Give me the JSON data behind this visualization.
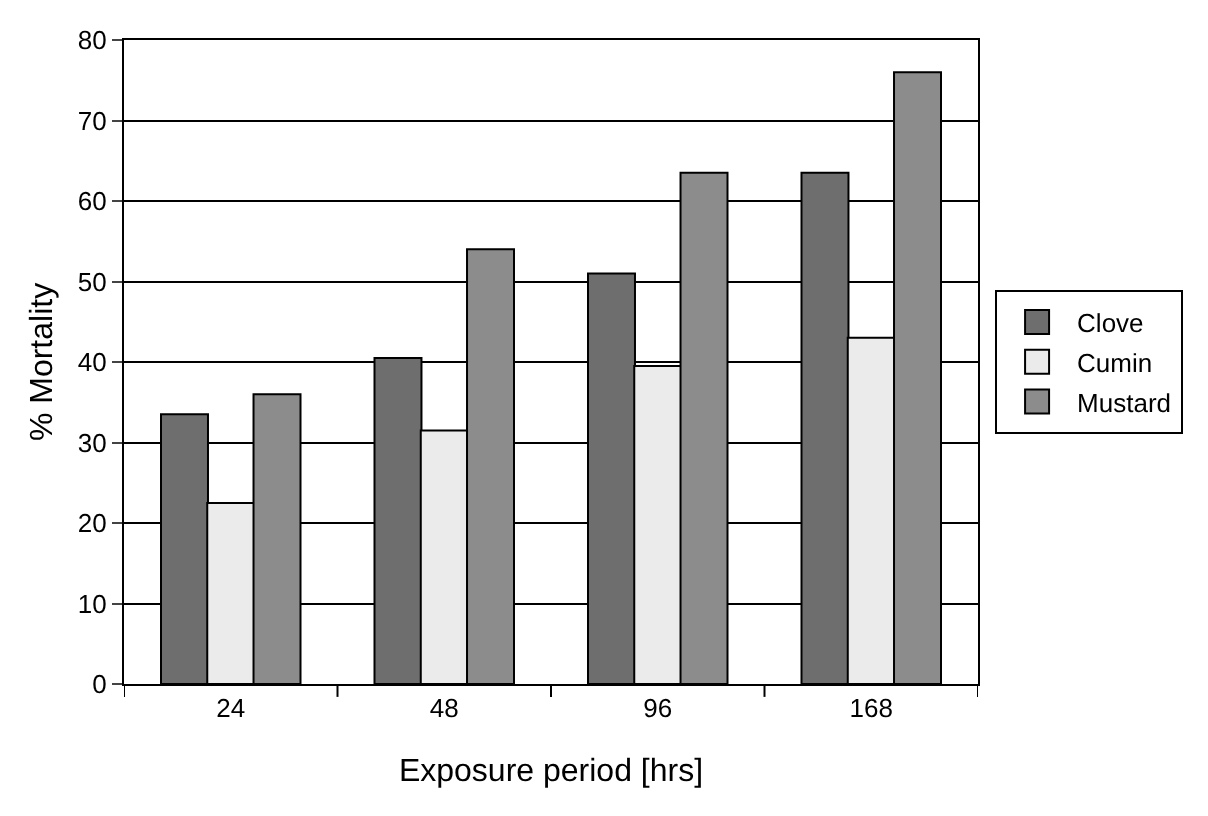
{
  "chart_data": {
    "type": "bar",
    "xlabel": "Exposure period [hrs]",
    "ylabel": "% Mortality",
    "categories": [
      "24",
      "48",
      "96",
      "168"
    ],
    "series": [
      {
        "name": "Clove",
        "color": "#6e6e6e",
        "values": [
          33.5,
          40.5,
          51,
          63.5
        ]
      },
      {
        "name": "Cumin",
        "color": "#ebebeb",
        "values": [
          22.5,
          31.5,
          39.5,
          43
        ]
      },
      {
        "name": "Mustard",
        "color": "#8c8c8c",
        "values": [
          36,
          54,
          63.5,
          76
        ]
      }
    ],
    "ylim": [
      0,
      80
    ],
    "yticks": [
      0,
      10,
      20,
      30,
      40,
      50,
      60,
      70,
      80
    ],
    "grid": "y",
    "legend": "right"
  }
}
